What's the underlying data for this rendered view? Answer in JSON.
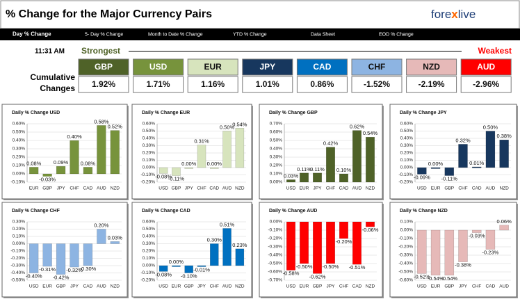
{
  "header": {
    "title": "% Change for the Major Currency Pairs",
    "logo": [
      "fore",
      "x",
      "live"
    ]
  },
  "tabs": [
    "Day % Change",
    "5- Day % Change",
    "Month to Date % Change",
    "YTD % Change",
    "Data Sheet",
    "EOD % Change"
  ],
  "time": "11:31 AM",
  "strongest": "Strongest",
  "weakest": "Weakest",
  "row_label": [
    "Cumulative",
    "Changes"
  ],
  "currencies": [
    {
      "name": "GBP",
      "color": "#4f6228",
      "change": "1.92%"
    },
    {
      "name": "USD",
      "color": "#77933c",
      "change": "1.71%"
    },
    {
      "name": "EUR",
      "color": "#d7e4bd",
      "change": "1.16%"
    },
    {
      "name": "JPY",
      "color": "#17375e",
      "change": "1.01%"
    },
    {
      "name": "CAD",
      "color": "#0070c0",
      "change": "0.86%"
    },
    {
      "name": "CHF",
      "color": "#8db4e2",
      "change": "-1.52%"
    },
    {
      "name": "NZD",
      "color": "#e6b9b8",
      "change": "-2.19%"
    },
    {
      "name": "AUD",
      "color": "#ff0000",
      "change": "-2.96%"
    }
  ],
  "chart_data": [
    {
      "type": "bar",
      "title": "Daily % Change USD",
      "color": "#77933c",
      "categories": [
        "EUR",
        "GBP",
        "JPY",
        "CHF",
        "CAD",
        "AUD",
        "NZD"
      ],
      "values": [
        0.08,
        -0.03,
        0.09,
        0.4,
        0.08,
        0.58,
        0.52
      ],
      "value_labels": [
        "0.08%",
        "-0.03%",
        "0.09%",
        "0.40%",
        "0.08%",
        "0.58%",
        "0.52%"
      ],
      "ylim": [
        -0.1,
        0.6
      ],
      "yticks": [
        {
          "value": -0.1,
          "label": "-0.10%"
        },
        {
          "value": 0,
          "label": "0.00%"
        },
        {
          "value": 0.1,
          "label": "0.10%"
        },
        {
          "value": 0.2,
          "label": "0.20%"
        },
        {
          "value": 0.3,
          "label": "0.30%"
        },
        {
          "value": 0.4,
          "label": "0.40%"
        },
        {
          "value": 0.5,
          "label": "0.50%"
        },
        {
          "value": 0.6,
          "label": "0.60%"
        }
      ]
    },
    {
      "type": "bar",
      "title": "Daily % Change EUR",
      "color": "#d7e4bd",
      "categories": [
        "USD",
        "GBP",
        "JPY",
        "CHF",
        "CAD",
        "AUD",
        "NZD"
      ],
      "values": [
        -0.08,
        -0.11,
        0.0,
        0.31,
        0.0,
        0.5,
        0.54
      ],
      "value_labels": [
        "-0.08%",
        "-0.11%",
        "0.00%",
        "0.31%",
        "0.00%",
        "0.50%",
        "0.54%"
      ],
      "ylim": [
        -0.2,
        0.6
      ],
      "yticks": [
        {
          "value": -0.2,
          "label": "-0.20%"
        },
        {
          "value": -0.1,
          "label": "-0.10%"
        },
        {
          "value": 0,
          "label": "0.00%"
        },
        {
          "value": 0.1,
          "label": "0.10%"
        },
        {
          "value": 0.2,
          "label": "0.20%"
        },
        {
          "value": 0.3,
          "label": "0.30%"
        },
        {
          "value": 0.4,
          "label": "0.40%"
        },
        {
          "value": 0.5,
          "label": "0.50%"
        },
        {
          "value": 0.6,
          "label": "0.60%"
        }
      ]
    },
    {
      "type": "bar",
      "title": "Daily % Change GBP",
      "color": "#4f6228",
      "categories": [
        "USD",
        "EUR",
        "JPY",
        "CHF",
        "CAD",
        "AUD",
        "NZD"
      ],
      "values": [
        0.03,
        0.11,
        0.11,
        0.42,
        0.1,
        0.62,
        0.54
      ],
      "value_labels": [
        "0.03%",
        "0.11%",
        "0.11%",
        "0.42%",
        "0.10%",
        "0.62%",
        "0.54%"
      ],
      "ylim": [
        0,
        0.7
      ],
      "yticks": [
        {
          "value": 0,
          "label": "0.00%"
        },
        {
          "value": 0.1,
          "label": "0.10%"
        },
        {
          "value": 0.2,
          "label": "0.20%"
        },
        {
          "value": 0.3,
          "label": "0.30%"
        },
        {
          "value": 0.4,
          "label": "0.40%"
        },
        {
          "value": 0.5,
          "label": "0.50%"
        },
        {
          "value": 0.6,
          "label": "0.60%"
        },
        {
          "value": 0.7,
          "label": "0.70%"
        }
      ]
    },
    {
      "type": "bar",
      "title": "Daily % Change JPY",
      "color": "#17375e",
      "categories": [
        "USD",
        "EUR",
        "GBP",
        "CHF",
        "CAD",
        "AUD",
        "NZD"
      ],
      "values": [
        -0.09,
        0.0,
        -0.11,
        0.32,
        0.01,
        0.5,
        0.38
      ],
      "value_labels": [
        "-0.09%",
        "0.00%",
        "-0.11%",
        "0.32%",
        "0.01%",
        "0.50%",
        "0.38%"
      ],
      "ylim": [
        -0.2,
        0.6
      ],
      "yticks": [
        {
          "value": -0.2,
          "label": "-0.20%"
        },
        {
          "value": -0.1,
          "label": "-0.10%"
        },
        {
          "value": 0,
          "label": "0.00%"
        },
        {
          "value": 0.1,
          "label": "0.10%"
        },
        {
          "value": 0.2,
          "label": "0.20%"
        },
        {
          "value": 0.3,
          "label": "0.30%"
        },
        {
          "value": 0.4,
          "label": "0.40%"
        },
        {
          "value": 0.5,
          "label": "0.50%"
        },
        {
          "value": 0.6,
          "label": "0.60%"
        }
      ]
    },
    {
      "type": "bar",
      "title": "Daily % Change CHF",
      "color": "#8db4e2",
      "categories": [
        "USD",
        "EUR",
        "GBP",
        "JPY",
        "CAD",
        "AUD",
        "NZD"
      ],
      "values": [
        -0.4,
        -0.31,
        -0.42,
        -0.32,
        -0.3,
        0.2,
        0.03
      ],
      "value_labels": [
        "-0.40%",
        "-0.31%",
        "-0.42%",
        "-0.32%",
        "-0.30%",
        "0.20%",
        "0.03%"
      ],
      "ylim": [
        -0.5,
        0.3
      ],
      "yticks": [
        {
          "value": -0.5,
          "label": "-0.50%"
        },
        {
          "value": -0.4,
          "label": "-0.40%"
        },
        {
          "value": -0.3,
          "label": "-0.30%"
        },
        {
          "value": -0.2,
          "label": "-0.20%"
        },
        {
          "value": -0.1,
          "label": "-0.10%"
        },
        {
          "value": 0,
          "label": "0.00%"
        },
        {
          "value": 0.1,
          "label": "0.10%"
        },
        {
          "value": 0.2,
          "label": "0.20%"
        },
        {
          "value": 0.3,
          "label": "0.30%"
        }
      ]
    },
    {
      "type": "bar",
      "title": "Daily % Change CAD",
      "color": "#0070c0",
      "categories": [
        "USD",
        "EUR",
        "GBP",
        "JPY",
        "CHF",
        "AUD",
        "NZD"
      ],
      "values": [
        -0.08,
        0.0,
        -0.1,
        -0.01,
        0.3,
        0.51,
        0.23
      ],
      "value_labels": [
        "-0.08%",
        "0.00%",
        "-0.10%",
        "-0.01%",
        "0.30%",
        "0.51%",
        "0.23%"
      ],
      "ylim": [
        -0.2,
        0.6
      ],
      "yticks": [
        {
          "value": -0.2,
          "label": "-0.20%"
        },
        {
          "value": -0.1,
          "label": "-0.10%"
        },
        {
          "value": 0,
          "label": "0.00%"
        },
        {
          "value": 0.1,
          "label": "0.10%"
        },
        {
          "value": 0.2,
          "label": "0.20%"
        },
        {
          "value": 0.3,
          "label": "0.30%"
        },
        {
          "value": 0.4,
          "label": "0.40%"
        },
        {
          "value": 0.5,
          "label": "0.50%"
        },
        {
          "value": 0.6,
          "label": "0.60%"
        }
      ]
    },
    {
      "type": "bar",
      "title": "Daily % Change AUD",
      "color": "#ff0000",
      "categories": [
        "USD",
        "EUR",
        "GBP",
        "JPY",
        "CHF",
        "CAD",
        "NZD"
      ],
      "values": [
        -0.58,
        -0.5,
        -0.62,
        -0.5,
        -0.2,
        -0.51,
        -0.06
      ],
      "value_labels": [
        "-0.58%",
        "-0.50%",
        "-0.62%",
        "-0.50%",
        "-0.20%",
        "-0.51%",
        "-0.06%"
      ],
      "ylim": [
        -0.7,
        0
      ],
      "yticks": [
        {
          "value": -0.7,
          "label": "-0.70%"
        },
        {
          "value": -0.6,
          "label": "-0.60%"
        },
        {
          "value": -0.5,
          "label": "-0.50%"
        },
        {
          "value": -0.4,
          "label": "-0.40%"
        },
        {
          "value": -0.3,
          "label": "-0.30%"
        },
        {
          "value": -0.2,
          "label": "-0.20%"
        },
        {
          "value": -0.1,
          "label": "-0.10%"
        },
        {
          "value": 0,
          "label": "0.00%"
        }
      ]
    },
    {
      "type": "bar",
      "title": "Daily % Change NZD",
      "color": "#e6b9b8",
      "categories": [
        "USD",
        "EUR",
        "GBP",
        "JPY",
        "CHF",
        "CAD",
        "AUD"
      ],
      "values": [
        -0.52,
        -0.54,
        -0.54,
        -0.38,
        -0.03,
        -0.23,
        0.06
      ],
      "value_labels": [
        "-0.52%",
        "-0.54%",
        "-0.54%",
        "-0.38%",
        "-0.03%",
        "-0.23%",
        "0.06%"
      ],
      "ylim": [
        -0.6,
        0.1
      ],
      "yticks": [
        {
          "value": -0.6,
          "label": "-0.60%"
        },
        {
          "value": -0.5,
          "label": "-0.50%"
        },
        {
          "value": -0.4,
          "label": "-0.40%"
        },
        {
          "value": -0.3,
          "label": "-0.30%"
        },
        {
          "value": -0.2,
          "label": "-0.20%"
        },
        {
          "value": -0.1,
          "label": "-0.10%"
        },
        {
          "value": 0,
          "label": "0.00%"
        },
        {
          "value": 0.1,
          "label": "0.10%"
        }
      ]
    }
  ]
}
